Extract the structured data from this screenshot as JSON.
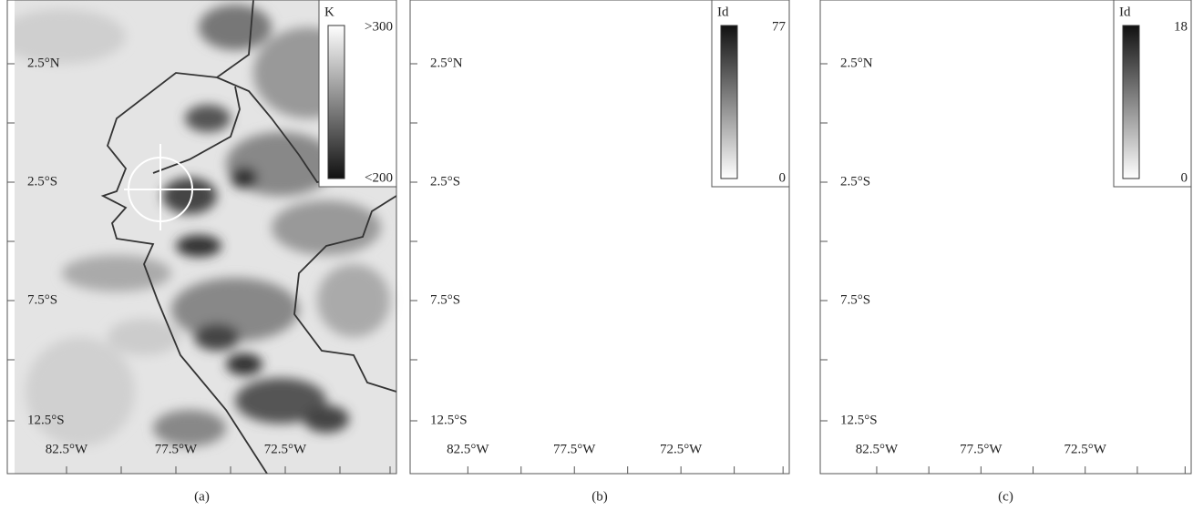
{
  "panels": [
    {
      "caption": "(a)",
      "colorbar": {
        "unit": "K",
        "max": ">300",
        "min": "<200"
      },
      "lat_labels": [
        "2.5°N",
        "2.5°S",
        "7.5°S",
        "12.5°S"
      ],
      "lon_labels": [
        "82.5°W",
        "77.5°W",
        "72.5°W"
      ]
    },
    {
      "caption": "(b)",
      "colorbar": {
        "unit": "Id",
        "max": "77",
        "min": "0"
      },
      "lat_labels": [
        "2.5°N",
        "2.5°S",
        "7.5°S",
        "12.5°S"
      ],
      "lon_labels": [
        "82.5°W",
        "77.5°W",
        "72.5°W"
      ]
    },
    {
      "caption": "(c)",
      "colorbar": {
        "unit": "Id",
        "max": "18",
        "min": "0"
      },
      "lat_labels": [
        "2.5°N",
        "2.5°S",
        "7.5°S",
        "12.5°S"
      ],
      "lon_labels": [
        "82.5°W",
        "77.5°W",
        "72.5°W"
      ]
    }
  ]
}
